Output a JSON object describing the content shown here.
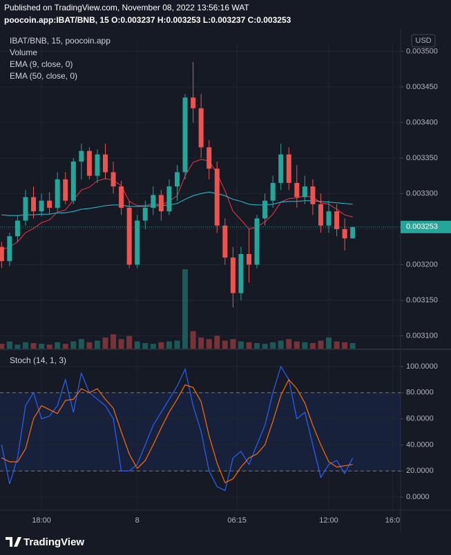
{
  "header": {
    "published": "Published on TradingView.com, November 08, 2022 13:56:16 WAT",
    "quote": "poocoin.app:IBAT/BNB, 15  O:0.003237  H:0.003253  L:0.003237  C:0.003253"
  },
  "footer": "TradingView",
  "chart_data": [
    {
      "type": "candlestick",
      "name": "IBAT/BNB, 15, poocoin.app",
      "currency": "USD",
      "up_color": "#26a69a",
      "down_color": "#ef5350",
      "open": [
        0.003225,
        0.003205,
        0.00324,
        0.003262,
        0.003295,
        0.003275,
        0.00329,
        0.00328,
        0.00332,
        0.00329,
        0.003345,
        0.00336,
        0.003325,
        0.003355,
        0.00333,
        0.00331,
        0.00328,
        0.0032,
        0.003262,
        0.00328,
        0.003298,
        0.003275,
        0.00331,
        0.00333,
        0.003435,
        0.00342,
        0.003365,
        0.003335,
        0.003255,
        0.00321,
        0.00316,
        0.003215,
        0.0032,
        0.003265,
        0.00329,
        0.003315,
        0.003355,
        0.003315,
        0.003295,
        0.00331,
        0.003285,
        0.003255,
        0.003275,
        0.00325,
        0.003237
      ],
      "high": [
        0.003232,
        0.003245,
        0.00327,
        0.003305,
        0.00331,
        0.0033,
        0.003302,
        0.00333,
        0.00333,
        0.00335,
        0.00337,
        0.003365,
        0.003362,
        0.00337,
        0.003345,
        0.003318,
        0.00329,
        0.00327,
        0.00329,
        0.00331,
        0.003305,
        0.00332,
        0.00334,
        0.00344,
        0.003485,
        0.00344,
        0.003375,
        0.003345,
        0.003265,
        0.003225,
        0.003225,
        0.00325,
        0.00327,
        0.0033,
        0.003325,
        0.00337,
        0.003365,
        0.00334,
        0.003325,
        0.00332,
        0.0033,
        0.00329,
        0.003285,
        0.003265,
        0.003253
      ],
      "low": [
        0.003195,
        0.003198,
        0.003232,
        0.003255,
        0.003265,
        0.003268,
        0.00327,
        0.003275,
        0.003285,
        0.003285,
        0.00332,
        0.00332,
        0.003315,
        0.00332,
        0.0033,
        0.00327,
        0.003195,
        0.003195,
        0.00325,
        0.00327,
        0.003262,
        0.00327,
        0.00329,
        0.00332,
        0.0034,
        0.00335,
        0.00332,
        0.003245,
        0.0032,
        0.00314,
        0.00315,
        0.003175,
        0.003195,
        0.003255,
        0.00328,
        0.003305,
        0.003305,
        0.00328,
        0.003285,
        0.00327,
        0.003245,
        0.003245,
        0.00324,
        0.00322,
        0.003237
      ],
      "close": [
        0.003205,
        0.00324,
        0.003262,
        0.003295,
        0.003275,
        0.00329,
        0.00328,
        0.00332,
        0.00329,
        0.003345,
        0.00336,
        0.003325,
        0.003355,
        0.00333,
        0.00331,
        0.00328,
        0.0032,
        0.003262,
        0.00328,
        0.003298,
        0.003275,
        0.00331,
        0.00333,
        0.003435,
        0.00342,
        0.003365,
        0.003335,
        0.003255,
        0.00321,
        0.00316,
        0.003215,
        0.0032,
        0.003265,
        0.00329,
        0.003315,
        0.003355,
        0.003315,
        0.003295,
        0.00331,
        0.003285,
        0.003255,
        0.003275,
        0.00325,
        0.003237,
        0.003253
      ],
      "volume": {
        "name": "Volume",
        "values": [
          6,
          9,
          5,
          8,
          7,
          6,
          5,
          8,
          6,
          9,
          12,
          8,
          10,
          14,
          18,
          12,
          16,
          9,
          7,
          6,
          8,
          9,
          10,
          100,
          22,
          14,
          12,
          16,
          10,
          12,
          9,
          8,
          7,
          6,
          8,
          10,
          12,
          9,
          8,
          7,
          10,
          14,
          9,
          8,
          7
        ]
      },
      "series": [
        {
          "name": "EMA (9, close, 0)",
          "color": "#f23645",
          "values": [
            0.003221,
            0.003225,
            0.003232,
            0.003245,
            0.003251,
            0.003259,
            0.003263,
            0.003274,
            0.003277,
            0.003291,
            0.003305,
            0.003309,
            0.003318,
            0.003321,
            0.003319,
            0.003311,
            0.003289,
            0.003283,
            0.003283,
            0.003286,
            0.003284,
            0.003289,
            0.003297,
            0.003325,
            0.003344,
            0.003348,
            0.003346,
            0.003328,
            0.003304,
            0.003275,
            0.003263,
            0.00325,
            0.003253,
            0.00326,
            0.003271,
            0.003288,
            0.003293,
            0.003294,
            0.003297,
            0.003295,
            0.003287,
            0.003285,
            0.003278,
            0.00327,
            0.003267
          ]
        },
        {
          "name": "EMA (50, close, 0)",
          "color": "#26c6da",
          "values": [
            0.00327,
            0.003269,
            0.003269,
            0.00327,
            0.00327,
            0.003271,
            0.003271,
            0.003273,
            0.003273,
            0.003275,
            0.003278,
            0.003279,
            0.003281,
            0.003283,
            0.003284,
            0.003284,
            0.003282,
            0.003282,
            0.003282,
            0.003283,
            0.003283,
            0.003284,
            0.003286,
            0.003292,
            0.003297,
            0.0033,
            0.003302,
            0.0033,
            0.003297,
            0.003292,
            0.003289,
            0.003285,
            0.003284,
            0.003284,
            0.003285,
            0.003288,
            0.003289,
            0.003289,
            0.00329,
            0.00329,
            0.003289,
            0.003288,
            0.003287,
            0.003286,
            0.003285
          ]
        }
      ],
      "xlim": [
        -0.2,
        50
      ],
      "xticks": [
        {
          "value": 5,
          "label": "18:00"
        },
        {
          "value": 17,
          "label": "8"
        },
        {
          "value": 29.5,
          "label": "06:15"
        },
        {
          "value": 41,
          "label": "12:00"
        },
        {
          "value": 49,
          "label": "16:0"
        }
      ],
      "ylim": [
        0.003082,
        0.003512
      ],
      "yticks": [
        {
          "value": 0.0031,
          "label": "0.003100"
        },
        {
          "value": 0.00315,
          "label": "0.003150"
        },
        {
          "value": 0.0032,
          "label": "0.003200"
        },
        {
          "value": 0.00325,
          "label": "0.003250"
        },
        {
          "value": 0.0033,
          "label": "0.003300"
        },
        {
          "value": 0.00335,
          "label": "0.003350"
        },
        {
          "value": 0.0034,
          "label": "0.003400"
        },
        {
          "value": 0.00345,
          "label": "0.003450"
        },
        {
          "value": 0.0035,
          "label": "0.003500"
        }
      ],
      "grid": true
    },
    {
      "type": "line",
      "title": "Stoch (14, 1, 3)",
      "series": [
        {
          "color": "#2962ff",
          "values": [
            40,
            10,
            30,
            70,
            80,
            60,
            62,
            70,
            90,
            65,
            95,
            80,
            75,
            70,
            60,
            20,
            20,
            25,
            40,
            55,
            65,
            75,
            85,
            98,
            70,
            50,
            20,
            8,
            5,
            30,
            35,
            25,
            40,
            55,
            80,
            100,
            90,
            60,
            65,
            40,
            15,
            25,
            28,
            18,
            30
          ]
        },
        {
          "color": "#ff6d00",
          "values": [
            30,
            27,
            27,
            37,
            60,
            70,
            67,
            64,
            74,
            75,
            83,
            80,
            83,
            75,
            68,
            50,
            33,
            22,
            28,
            40,
            53,
            65,
            75,
            86,
            84,
            73,
            47,
            26,
            11,
            14,
            23,
            30,
            33,
            40,
            58,
            78,
            90,
            83,
            72,
            55,
            40,
            27,
            23,
            24,
            25
          ]
        }
      ],
      "levels": [
        20,
        80
      ],
      "band_color": "#2962ff",
      "ylim": [
        -9.5,
        112.7
      ],
      "yticks": [
        {
          "value": 0,
          "label": "0.0000"
        },
        {
          "value": 20,
          "label": "20.0000"
        },
        {
          "value": 40,
          "label": "40.0000"
        },
        {
          "value": 60,
          "label": "60.0000"
        },
        {
          "value": 80,
          "label": "80.0000"
        },
        {
          "value": 100,
          "label": "100.0000"
        }
      ],
      "grid": true
    }
  ]
}
